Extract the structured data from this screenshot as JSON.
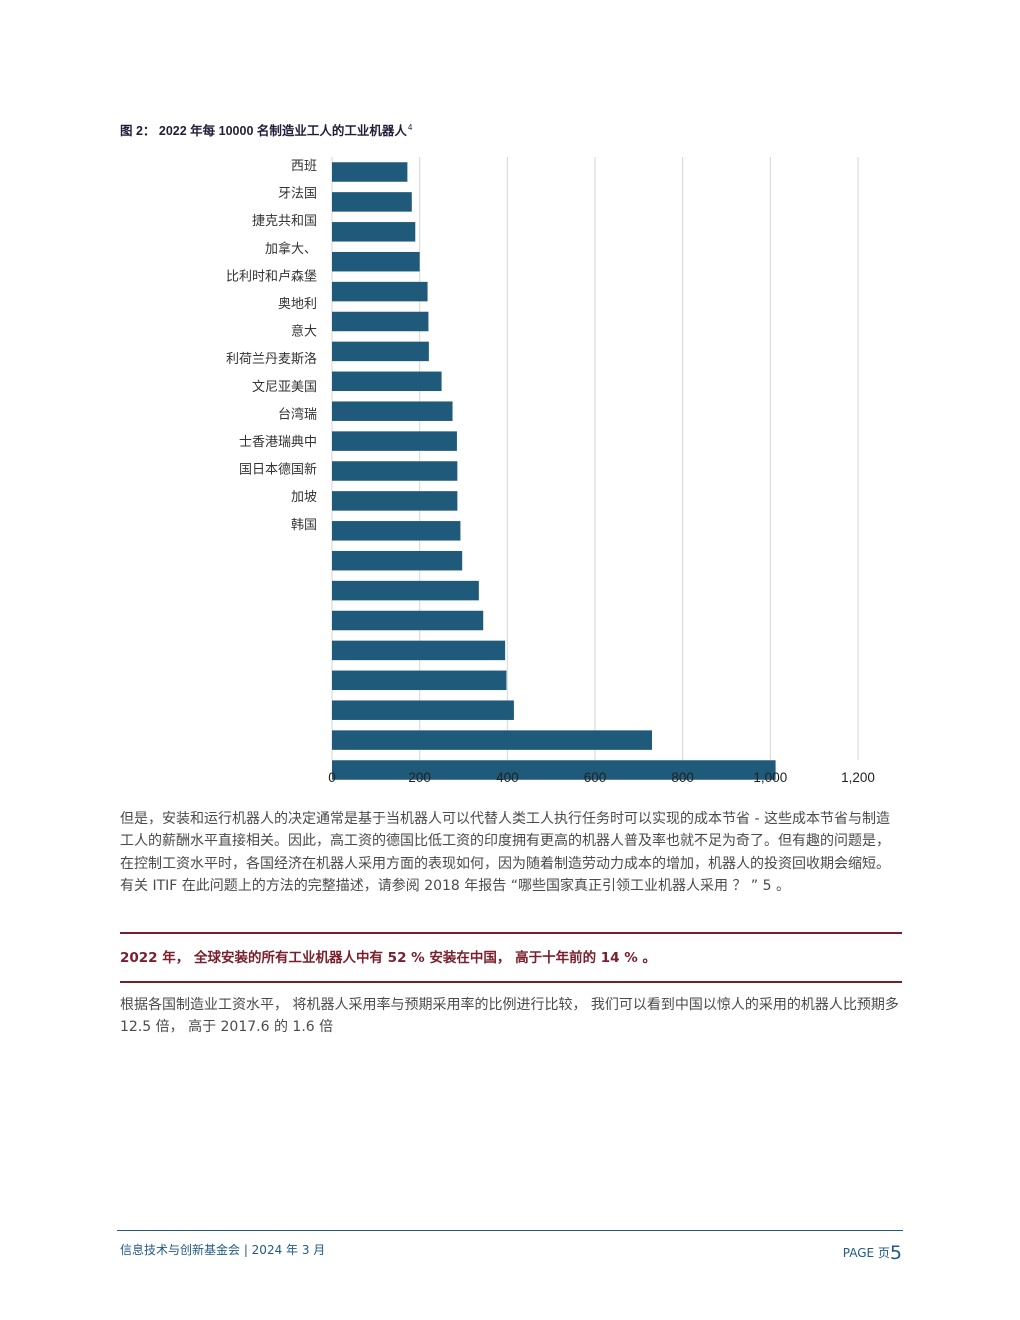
{
  "figure": {
    "title": "图 2： 2022 年每 10000 名制造业工人的工业机器人",
    "footnote_mark": "4"
  },
  "chart_data": {
    "type": "bar",
    "orientation": "horizontal",
    "categories": [
      "西班",
      "牙法国",
      "捷克共和国",
      "加拿大、",
      "比利时和卢森堡",
      "奥地利",
      "意大",
      "利荷兰丹麦斯洛",
      "文尼亚美国",
      "台湾瑞",
      "士香港瑞典中",
      "国日本德国新",
      "加坡",
      "韩国",
      "",
      "",
      "",
      "",
      "",
      "",
      ""
    ],
    "values": [
      172,
      182,
      190,
      200,
      218,
      220,
      221,
      250,
      275,
      285,
      286,
      286,
      293,
      297,
      335,
      345,
      395,
      398,
      415,
      730,
      1012
    ],
    "xlim": [
      0,
      1200
    ],
    "xticks": [
      "0",
      "200",
      "400",
      "600",
      "800",
      "1,000",
      "1,200"
    ],
    "grid": true,
    "bar_color": "#1f5a7a",
    "grid_color": "#d6d6d6"
  },
  "body": {
    "paragraph1": "但是，安装和运行机器人的决定通常是基于当机器人可以代替人类工人执行任务时可以实现的成本节省 - 这些成本节省与制造工人的薪酬水平直接相关。因此，高工资的德国比低工资的印度拥有更高的机器人普及率也就不足为奇了。但有趣的问题是，在控制工资水平时，各国经济在机器人采用方面的表现如何，因为随着制造劳动力成本的增加，机器人的投资回收期会缩短。有关 ITIF 在此问题上的方法的完整描述，请参阅 2018 年报告 “哪些国家真正引领工业机器人采用 ？ ” 5 。",
    "callout": "2022 年， 全球安装的所有工业机器人中有 52 % 安装在中国， 高于十年前的 14 % 。",
    "paragraph2": "根据各国制造业工资水平， 将机器人采用率与预期采用率的比例进行比较， 我们可以看到中国以惊人的采用的机器人比预期多 12.5 倍， 高于 2017.6 的 1.6 倍"
  },
  "footer": {
    "left": "信息技术与创新基金会 | 2024 年 3 月",
    "page_label": "PAGE 页",
    "page_number": "5"
  },
  "colors": {
    "accent": "#7a1e2b",
    "footer": "#1f5a86"
  }
}
